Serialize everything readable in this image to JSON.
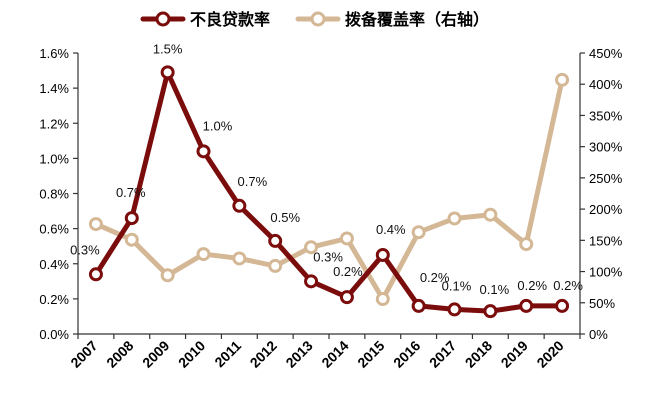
{
  "chart_data": {
    "type": "line",
    "title": "",
    "categories": [
      "2007",
      "2008",
      "2009",
      "2010",
      "2011",
      "2012",
      "2013",
      "2014",
      "2015",
      "2016",
      "2017",
      "2018",
      "2019",
      "2020"
    ],
    "series": [
      {
        "name": "不良贷款率",
        "axis": "left",
        "color": "#7b0c0c",
        "values": [
          0.34,
          0.66,
          1.49,
          1.04,
          0.73,
          0.53,
          0.3,
          0.21,
          0.45,
          0.16,
          0.14,
          0.13,
          0.16,
          0.16
        ],
        "labels": [
          "0.3%",
          "0.7%",
          "1.5%",
          "1.0%",
          "0.7%",
          "0.5%",
          "0.3%",
          "0.2%",
          "0.4%",
          "0.2%",
          "0.1%",
          "0.1%",
          "0.2%",
          "0.2%"
        ]
      },
      {
        "name": "拨备覆盖率（右轴）",
        "axis": "right",
        "color": "#d4b896",
        "values": [
          176,
          151,
          94,
          128,
          121,
          109,
          139,
          153,
          56,
          163,
          185,
          191,
          144,
          407
        ]
      }
    ],
    "y_left": {
      "min": 0,
      "max": 1.6,
      "step": 0.2,
      "ticks": [
        "0.0%",
        "0.2%",
        "0.4%",
        "0.6%",
        "0.8%",
        "1.0%",
        "1.2%",
        "1.4%",
        "1.6%"
      ]
    },
    "y_right": {
      "min": 0,
      "max": 450,
      "step": 50,
      "ticks": [
        "0%",
        "50%",
        "100%",
        "150%",
        "200%",
        "250%",
        "300%",
        "350%",
        "400%",
        "450%"
      ]
    },
    "legend_position": "top-center",
    "grid": false
  }
}
